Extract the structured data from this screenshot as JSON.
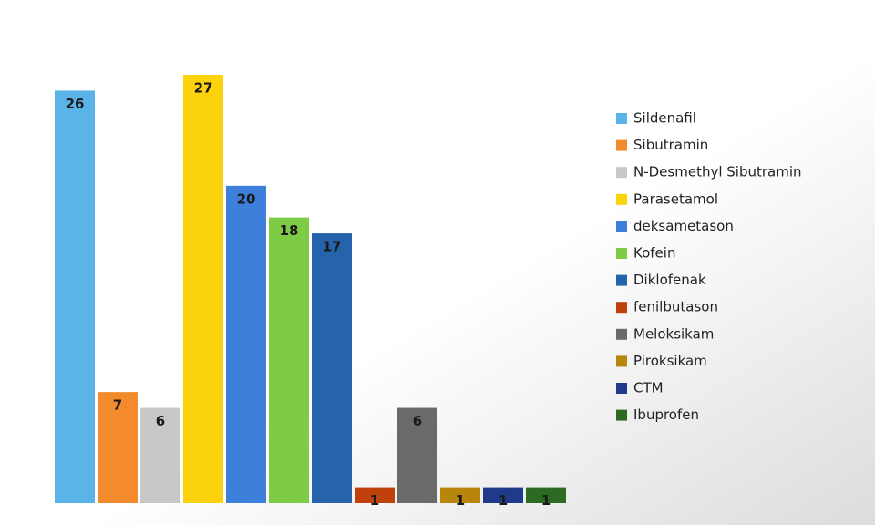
{
  "chart_data": {
    "type": "bar",
    "series": [
      {
        "name": "Sildenafil",
        "color": "#5bb4e8",
        "values": [
          26
        ]
      },
      {
        "name": "Sibutramin",
        "color": "#f38b2c",
        "values": [
          7
        ]
      },
      {
        "name": "N-Desmethyl Sibutramin",
        "color": "#c8c8c8",
        "values": [
          6
        ]
      },
      {
        "name": "Parasetamol",
        "color": "#fcd20c",
        "values": [
          27
        ]
      },
      {
        "name": "deksametason",
        "color": "#3f7fdc",
        "values": [
          20
        ]
      },
      {
        "name": "Kofein",
        "color": "#7ecb46",
        "values": [
          18
        ]
      },
      {
        "name": "Diklofenak",
        "color": "#2563ad",
        "values": [
          17
        ]
      },
      {
        "name": "fenilbutason",
        "color": "#c0410c",
        "values": [
          1
        ]
      },
      {
        "name": "Meloksikam",
        "color": "#6a6a6a",
        "values": [
          6
        ]
      },
      {
        "name": "Piroksikam",
        "color": "#b8860b",
        "values": [
          1
        ]
      },
      {
        "name": "CTM",
        "color": "#1f3a8a",
        "values": [
          1
        ]
      },
      {
        "name": "Ibuprofen",
        "color": "#2e6b22",
        "values": [
          1
        ]
      }
    ],
    "legend": "right"
  }
}
